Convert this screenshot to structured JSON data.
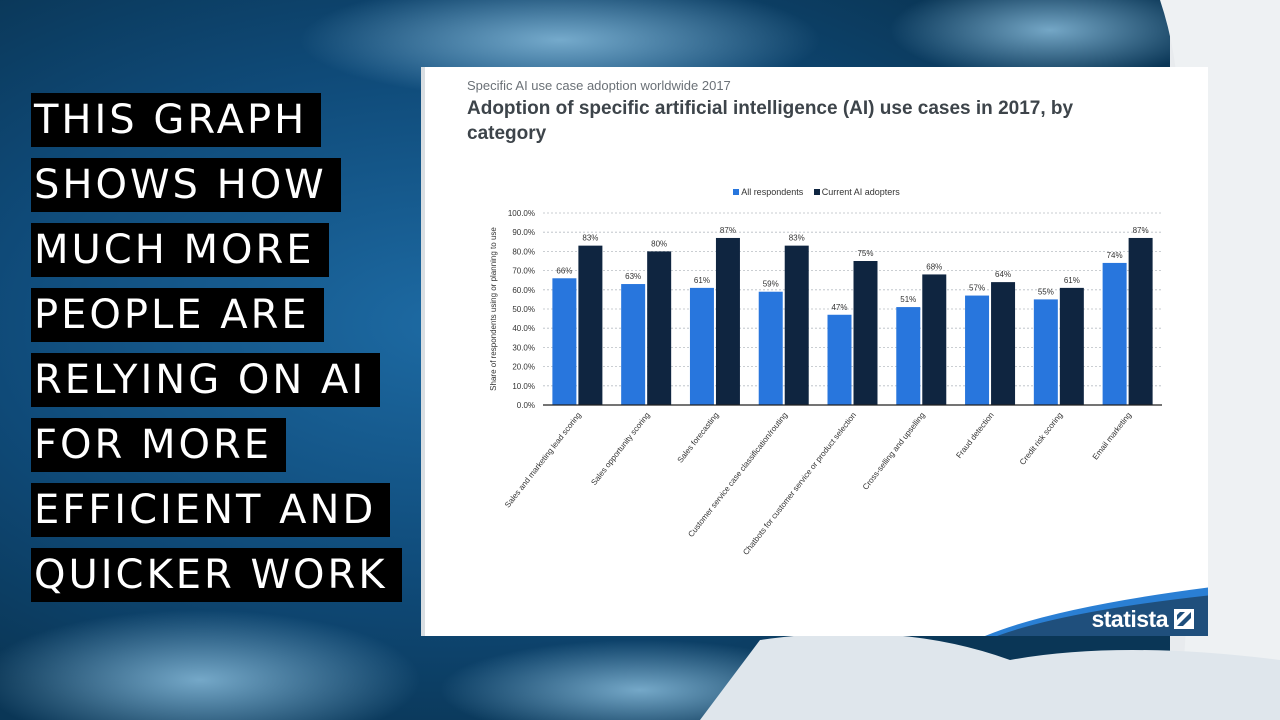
{
  "slide": {
    "caption_lines": [
      "THIS GRAPH",
      "SHOWS HOW",
      "MUCH MORE",
      "PEOPLE ARE",
      "RELYING ON AI",
      "FOR MORE",
      "EFFICIENT AND",
      "QUICKER WORK"
    ]
  },
  "brand": {
    "name": "statista",
    "icon": "statista-logo-icon",
    "color": "#1f4f7c"
  },
  "chart_data": {
    "type": "bar",
    "subtitle": "Specific AI use case adoption worldwide 2017",
    "title": "Adoption of specific artificial intelligence (AI) use cases in 2017, by category",
    "ylabel": "Share of respondents using or planning to use",
    "xlabel": "",
    "ylim": [
      0,
      100
    ],
    "y_ticks": [
      "0.0%",
      "10.0%",
      "20.0%",
      "30.0%",
      "40.0%",
      "50.0%",
      "60.0%",
      "70.0%",
      "80.0%",
      "90.0%",
      "100.0%"
    ],
    "grid": true,
    "legend_position": "top-center",
    "categories": [
      "Sales and marketing lead scoring",
      "Sales opportunity scoring",
      "Sales forecasting",
      "Customer service case classification/routing",
      "Chatbots for customer service or product selection",
      "Cross-selling and upselling",
      "Fraud detection",
      "Credit risk scoring",
      "Email marketing"
    ],
    "series": [
      {
        "name": "All respondents",
        "color": "#2876dd",
        "values": [
          66,
          63,
          61,
          59,
          47,
          51,
          57,
          55,
          74
        ],
        "labels": [
          "66%",
          "63%",
          "61%",
          "59%",
          "47%",
          "51%",
          "57%",
          "55%",
          "74%"
        ]
      },
      {
        "name": "Current AI adopters",
        "color": "#0f2540",
        "values": [
          83,
          80,
          87,
          83,
          75,
          68,
          64,
          61,
          87
        ],
        "labels": [
          "83%",
          "80%",
          "87%",
          "83%",
          "75%",
          "68%",
          "64%",
          "61%",
          "87%"
        ]
      }
    ]
  }
}
